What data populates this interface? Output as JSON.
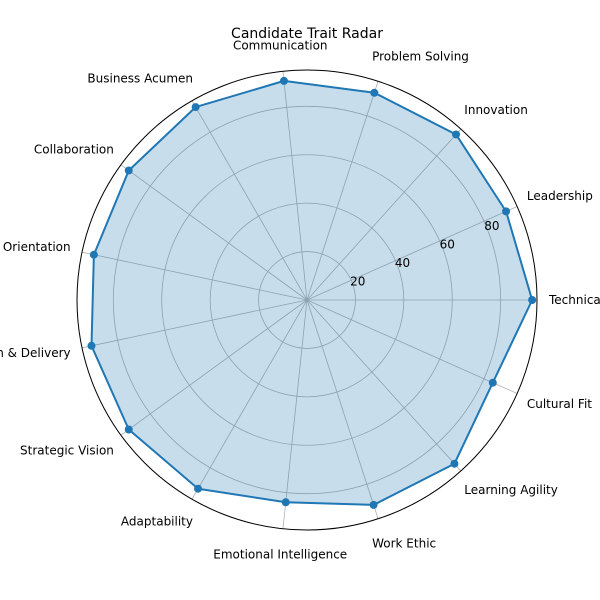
{
  "colors": {
    "series_line": "#1f77b4",
    "series_fill": "#1f77b4",
    "grid": "#b0b0b0",
    "frame": "#000000"
  },
  "chart_data": {
    "type": "radar",
    "title": "Candidate Trait Radar",
    "categories": [
      "Technical Exper",
      "Leadership",
      "Innovation",
      "Problem Solving",
      "Communication",
      "Business Acumen",
      "Collaboration",
      "Research Orientation",
      "Execution & Delivery",
      "Strategic Vision",
      "Adaptability",
      "Emotional Intelligence",
      "Work Ethic",
      "Learning Agility",
      "Cultural Fit"
    ],
    "series": [
      {
        "values": [
          93,
          90,
          92,
          90,
          91,
          92,
          91,
          90,
          91,
          91,
          90,
          84,
          89,
          91,
          84
        ]
      }
    ],
    "rlim": [
      0,
      95
    ],
    "rticks": [
      20,
      40,
      60,
      80
    ],
    "start_angle_deg": 0,
    "direction": "counterclockwise",
    "grid": true
  }
}
